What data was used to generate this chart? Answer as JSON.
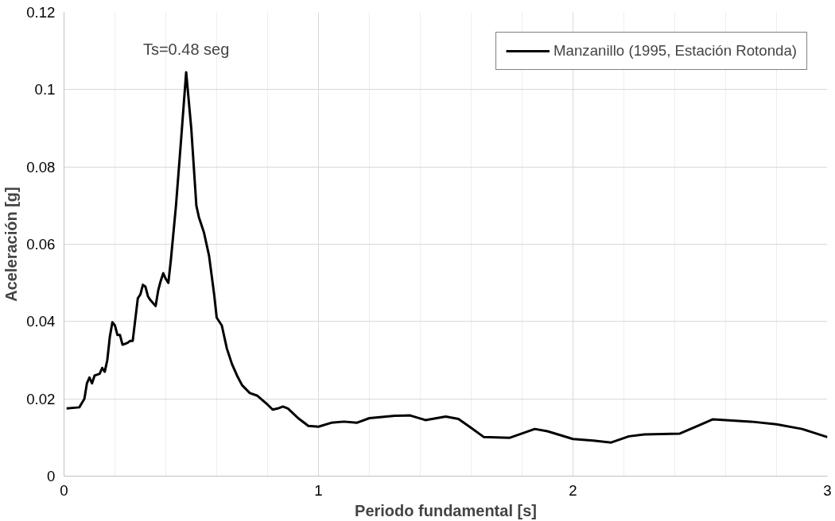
{
  "chart_data": {
    "type": "line",
    "xlabel": "Periodo fundamental [s]",
    "ylabel": "Aceleración [g]",
    "x": [
      0.01,
      0.06,
      0.08,
      0.09,
      0.1,
      0.11,
      0.12,
      0.14,
      0.15,
      0.16,
      0.17,
      0.18,
      0.19,
      0.2,
      0.21,
      0.22,
      0.23,
      0.25,
      0.26,
      0.27,
      0.29,
      0.3,
      0.31,
      0.32,
      0.33,
      0.34,
      0.36,
      0.37,
      0.38,
      0.39,
      0.4,
      0.41,
      0.42,
      0.44,
      0.46,
      0.48,
      0.5,
      0.52,
      0.53,
      0.55,
      0.57,
      0.59,
      0.6,
      0.62,
      0.64,
      0.66,
      0.68,
      0.7,
      0.73,
      0.76,
      0.8,
      0.82,
      0.84,
      0.86,
      0.88,
      0.92,
      0.96,
      1.0,
      1.05,
      1.1,
      1.15,
      1.2,
      1.3,
      1.36,
      1.42,
      1.5,
      1.55,
      1.6,
      1.65,
      1.75,
      1.85,
      1.9,
      2.0,
      2.08,
      2.15,
      2.22,
      2.28,
      2.42,
      2.5,
      2.55,
      2.7,
      2.8,
      2.9,
      3.0
    ],
    "series": [
      {
        "name": "Manzanillo (1995, Estación Rotonda)",
        "color": "#000000",
        "values": [
          0.0175,
          0.0178,
          0.02,
          0.024,
          0.0255,
          0.024,
          0.026,
          0.0265,
          0.028,
          0.027,
          0.03,
          0.036,
          0.0398,
          0.039,
          0.0365,
          0.0365,
          0.034,
          0.0345,
          0.035,
          0.035,
          0.046,
          0.047,
          0.0495,
          0.049,
          0.0465,
          0.0455,
          0.044,
          0.048,
          0.0505,
          0.0525,
          0.051,
          0.05,
          0.056,
          0.07,
          0.087,
          0.1045,
          0.09,
          0.07,
          0.067,
          0.063,
          0.057,
          0.047,
          0.041,
          0.039,
          0.033,
          0.029,
          0.026,
          0.0235,
          0.0215,
          0.0208,
          0.0185,
          0.0172,
          0.0175,
          0.018,
          0.0175,
          0.015,
          0.013,
          0.0128,
          0.0138,
          0.0141,
          0.0138,
          0.015,
          0.0156,
          0.0157,
          0.0145,
          0.0154,
          0.0148,
          0.0125,
          0.0101,
          0.0099,
          0.0122,
          0.0116,
          0.0096,
          0.0092,
          0.0087,
          0.0103,
          0.0108,
          0.011,
          0.0133,
          0.0147,
          0.0141,
          0.0134,
          0.0122,
          0.0101
        ]
      }
    ],
    "xlim": [
      0,
      3
    ],
    "xticks": [
      0,
      1,
      2,
      3
    ],
    "ylim": [
      0,
      0.12
    ],
    "yticks": [
      0,
      0.02,
      0.04,
      0.06,
      0.08,
      0.1,
      0.12
    ],
    "annotations": [
      {
        "text": "Ts=0.48 seg",
        "x": 0.48,
        "y": 0.1045
      }
    ],
    "grid": true,
    "legend": "top right",
    "line_style": "solid",
    "marker": "none"
  }
}
